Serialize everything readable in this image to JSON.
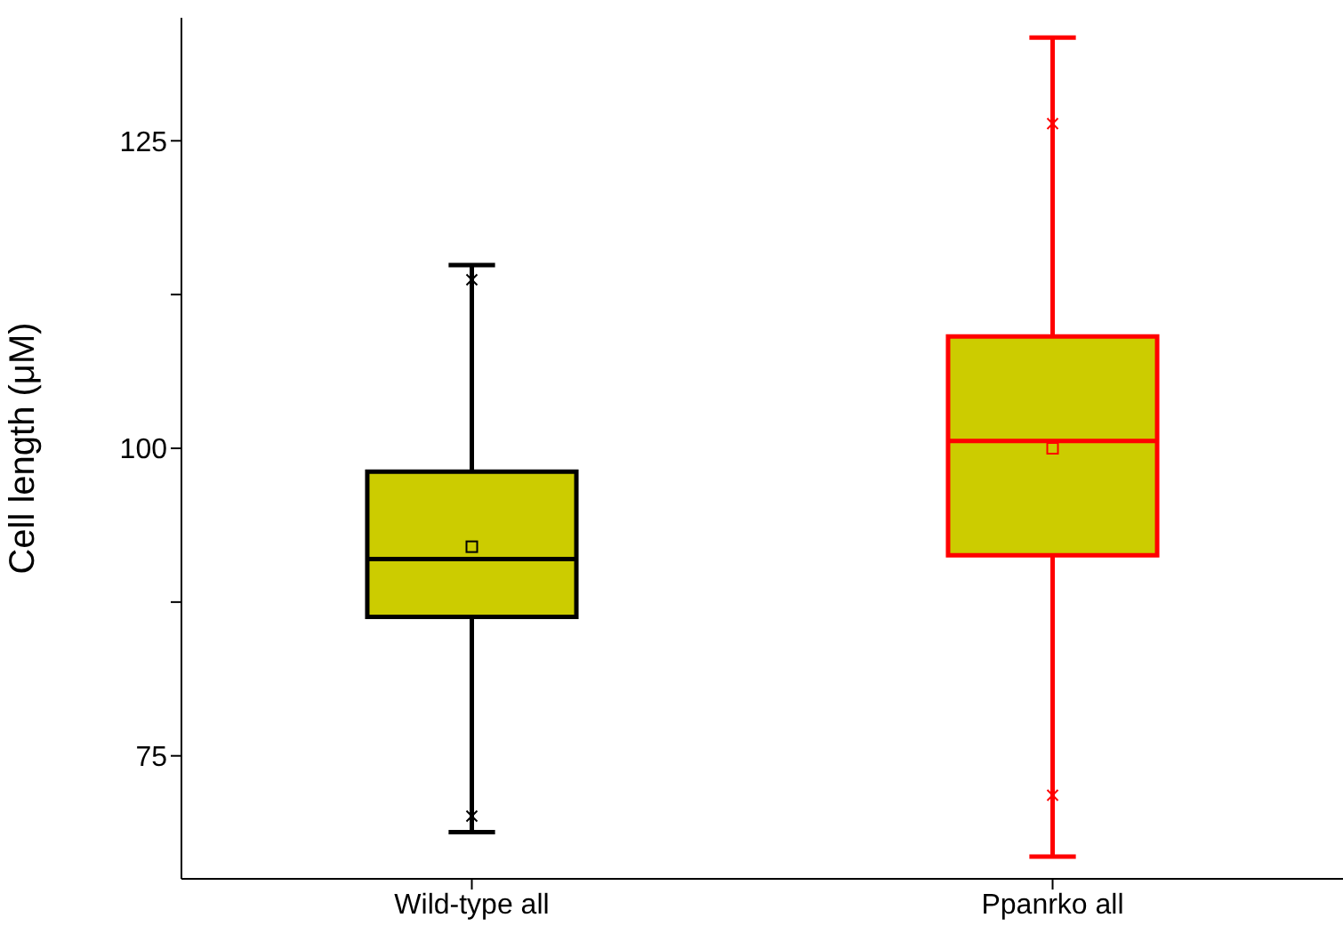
{
  "chart_data": {
    "type": "box",
    "ylabel": "Cell length (μM)",
    "categories": [
      "Wild-type all",
      "Ppanrko all"
    ],
    "boxes": [
      {
        "low": 68.8,
        "q1": 86.3,
        "median": 91.0,
        "q3": 98.1,
        "high": 114.9,
        "mean": 92.0,
        "outliers": [
          70.1,
          113.7
        ]
      },
      {
        "low": 66.8,
        "q1": 91.3,
        "median": 100.6,
        "q3": 109.1,
        "high": 133.4,
        "mean": 100.0,
        "outliers": [
          71.8,
          126.4
        ]
      }
    ],
    "color": "#cccc00",
    "colors": [
      "#000000",
      "#ff0000"
    ],
    "ylim": [
      65,
      135
    ],
    "yticks": [
      75,
      {
        "value": 87.5,
        "label": null
      },
      100,
      {
        "value": 112.5,
        "label": null
      },
      125
    ],
    "grid": false,
    "legend": false
  }
}
